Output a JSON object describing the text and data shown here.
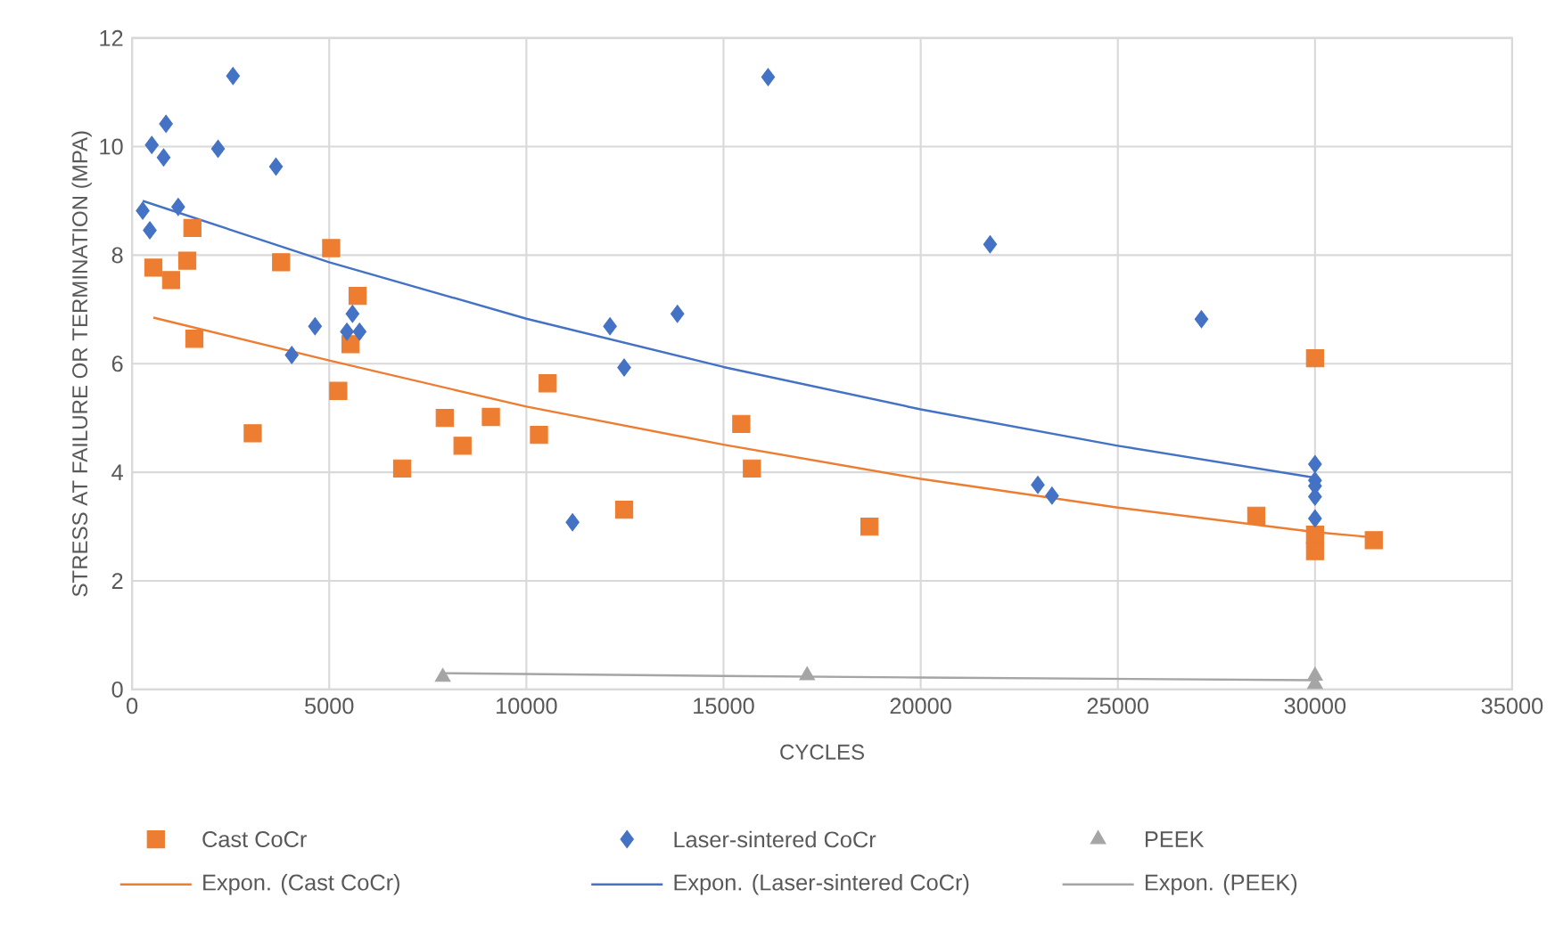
{
  "chart_data": {
    "type": "scatter",
    "xlabel": "CYCLES",
    "ylabel": "STRESS AT FAILURE OR TERMINATION (MPA)",
    "xlim": [
      0,
      35000
    ],
    "xticks": [
      0,
      5000,
      10000,
      15000,
      20000,
      25000,
      30000,
      35000
    ],
    "ylim": [
      0,
      12
    ],
    "yticks": [
      0,
      2,
      4,
      6,
      8,
      10,
      12
    ],
    "grid": true,
    "legend": "bottom",
    "series": [
      {
        "name": "Cast CoCr",
        "type": "scatter",
        "marker": "square",
        "color": "#ed7d31",
        "x": [
          540,
          990,
          1400,
          1530,
          1580,
          3060,
          3780,
          5050,
          5720,
          5540,
          5230,
          7930,
          8380,
          9100,
          6850,
          10320,
          10540,
          12480,
          15450,
          15720,
          18700,
          28510,
          30000,
          31490,
          30000,
          30000
        ],
        "values": [
          7.77,
          7.54,
          7.9,
          8.5,
          6.46,
          4.72,
          7.87,
          8.13,
          7.25,
          6.36,
          5.5,
          5.0,
          4.49,
          5.02,
          4.07,
          4.69,
          5.64,
          3.31,
          4.89,
          4.07,
          3.0,
          3.2,
          6.1,
          2.75,
          2.85,
          2.55
        ]
      },
      {
        "name": "Laser-sintered CoCr",
        "type": "scatter",
        "marker": "diamond",
        "color": "#4472c4",
        "x": [
          2560,
          860,
          500,
          800,
          2180,
          3650,
          270,
          1170,
          450,
          4640,
          4050,
          5590,
          5450,
          5770,
          12120,
          12480,
          11170,
          16130,
          13830,
          21760,
          22970,
          23330,
          27120,
          30000,
          30000,
          30000,
          30000,
          30000
        ],
        "values": [
          11.3,
          10.42,
          10.03,
          9.8,
          9.96,
          9.63,
          8.82,
          8.89,
          8.46,
          6.69,
          6.16,
          6.92,
          6.59,
          6.59,
          6.69,
          5.93,
          3.08,
          11.28,
          6.92,
          8.2,
          3.77,
          3.57,
          6.82,
          4.15,
          3.85,
          3.75,
          3.55,
          3.15
        ]
      },
      {
        "name": "PEEK",
        "type": "scatter",
        "marker": "triangle",
        "color": "#a5a5a5",
        "x": [
          7880,
          17120,
          30000,
          30000
        ],
        "values": [
          0.23,
          0.26,
          0.25,
          0.1
        ]
      },
      {
        "name": "Expon. (Cast CoCr)",
        "type": "line",
        "marker": "none",
        "color": "#ed7d31",
        "x": [
          540,
          5000,
          10000,
          15000,
          20000,
          25000,
          30000,
          31500
        ],
        "values": [
          6.85,
          6.06,
          5.21,
          4.51,
          3.88,
          3.35,
          2.9,
          2.8
        ]
      },
      {
        "name": "Expon. (Laser-sintered CoCr)",
        "type": "line",
        "marker": "none",
        "color": "#4472c4",
        "x": [
          270,
          5000,
          10000,
          15000,
          20000,
          25000,
          30000
        ],
        "values": [
          9.0,
          7.87,
          6.83,
          5.94,
          5.16,
          4.49,
          3.9
        ]
      },
      {
        "name": "Expon. (PEEK)",
        "type": "line",
        "marker": "none",
        "color": "#a5a5a5",
        "x": [
          7880,
          15000,
          20000,
          30000
        ],
        "values": [
          0.3,
          0.25,
          0.22,
          0.17
        ]
      }
    ]
  }
}
